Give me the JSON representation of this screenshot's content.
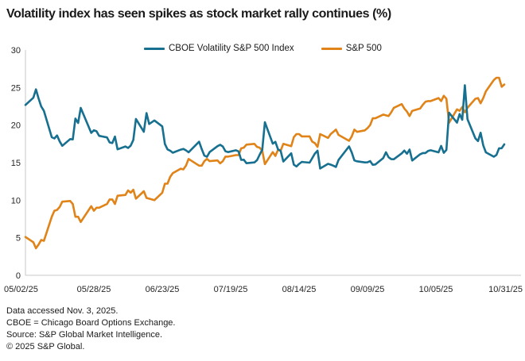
{
  "header": {
    "title": "Volatility index has seen spikes as stock market rally continues (%)"
  },
  "footer": {
    "lines": [
      "Data accessed Nov. 3, 2025.",
      "CBOE = Chicago Board Options Exchange.",
      "Source: S&P Global Market Intelligence.",
      "© 2025 S&P Global."
    ]
  },
  "chart_data": {
    "type": "line",
    "title": "Volatility index has seen spikes as stock market rally continues (%)",
    "unit": "%",
    "grid": false,
    "legend_position": "top",
    "x_axis": {
      "tick_labels": [
        "05/02/25",
        "05/28/25",
        "06/23/25",
        "07/19/25",
        "08/14/25",
        "09/09/25",
        "10/05/25",
        "10/31/25"
      ],
      "tick_day_offsets": [
        0,
        26,
        52,
        78,
        104,
        130,
        156,
        182
      ],
      "span_days": 182
    },
    "y_axis": {
      "ticks": [
        0,
        5,
        10,
        15,
        20,
        25,
        30
      ],
      "range": [
        0,
        30
      ]
    },
    "dates": [
      "05/02",
      "05/05",
      "05/06",
      "05/07",
      "05/08",
      "05/09",
      "05/12",
      "05/13",
      "05/14",
      "05/15",
      "05/16",
      "05/19",
      "05/20",
      "05/21",
      "05/22",
      "05/23",
      "05/27",
      "05/28",
      "05/29",
      "05/30",
      "06/02",
      "06/03",
      "06/04",
      "06/05",
      "06/06",
      "06/09",
      "06/10",
      "06/11",
      "06/12",
      "06/13",
      "06/16",
      "06/17",
      "06/18",
      "06/20",
      "06/23",
      "06/24",
      "06/25",
      "06/26",
      "06/27",
      "06/30",
      "07/01",
      "07/02",
      "07/03",
      "07/07",
      "07/08",
      "07/09",
      "07/10",
      "07/11",
      "07/14",
      "07/15",
      "07/16",
      "07/17",
      "07/18",
      "07/21",
      "07/22",
      "07/23",
      "07/24",
      "07/25",
      "07/28",
      "07/29",
      "07/30",
      "07/31",
      "08/01",
      "08/04",
      "08/05",
      "08/06",
      "08/07",
      "08/08",
      "08/11",
      "08/12",
      "08/13",
      "08/14",
      "08/15",
      "08/18",
      "08/19",
      "08/20",
      "08/21",
      "08/22",
      "08/25",
      "08/26",
      "08/27",
      "08/28",
      "08/29",
      "09/02",
      "09/03",
      "09/04",
      "09/05",
      "09/08",
      "09/09",
      "09/10",
      "09/11",
      "09/12",
      "09/15",
      "09/16",
      "09/17",
      "09/18",
      "09/19",
      "09/22",
      "09/23",
      "09/24",
      "09/25",
      "09/26",
      "09/29",
      "09/30",
      "10/01",
      "10/02",
      "10/03",
      "10/06",
      "10/07",
      "10/08",
      "10/09",
      "10/10",
      "10/13",
      "10/14",
      "10/15",
      "10/16",
      "10/17",
      "10/20",
      "10/21",
      "10/22",
      "10/23",
      "10/24",
      "10/27",
      "10/28",
      "10/29",
      "10/30",
      "10/31"
    ],
    "series": [
      {
        "name": "CBOE Volatility S&P 500 Index",
        "color": "#17708F",
        "values": [
          22.68,
          23.64,
          24.76,
          23.55,
          22.48,
          21.9,
          18.38,
          18.22,
          18.62,
          17.83,
          17.24,
          18.14,
          18.09,
          20.87,
          20.28,
          22.29,
          18.96,
          19.31,
          19.18,
          18.57,
          18.36,
          17.69,
          17.61,
          18.48,
          16.77,
          17.16,
          16.95,
          17.26,
          18.02,
          20.82,
          19.11,
          21.6,
          20.14,
          20.62,
          19.83,
          17.48,
          16.76,
          16.59,
          16.32,
          16.73,
          16.83,
          16.64,
          16.38,
          17.79,
          16.81,
          15.94,
          15.78,
          16.4,
          17.2,
          17.38,
          17.16,
          16.52,
          16.41,
          16.65,
          16.5,
          15.37,
          15.39,
          14.93,
          15.03,
          15.33,
          16.06,
          16.72,
          20.38,
          17.52,
          17.77,
          16.77,
          16.57,
          15.15,
          16.25,
          14.73,
          14.49,
          14.83,
          15.09,
          15.0,
          15.59,
          16.2,
          16.6,
          14.22,
          14.84,
          14.74,
          14.6,
          14.43,
          15.36,
          17.17,
          16.35,
          15.3,
          15.18,
          15.03,
          15.04,
          15.21,
          14.71,
          14.76,
          15.61,
          16.38,
          15.72,
          15.47,
          15.45,
          16.24,
          16.61,
          16.18,
          16.74,
          15.29,
          16.12,
          16.28,
          16.28,
          16.55,
          16.65,
          16.37,
          17.23,
          16.31,
          16.7,
          21.66,
          20.32,
          21.48,
          20.7,
          25.31,
          20.78,
          18.23,
          17.87,
          18.98,
          17.3,
          16.37,
          15.79,
          16.02,
          16.91,
          16.92,
          17.44
        ]
      },
      {
        "name": "S&P 500",
        "color": "#E08318",
        "values": [
          5.1,
          4.4,
          3.6,
          4.1,
          4.7,
          4.6,
          7.8,
          8.6,
          8.7,
          9.1,
          9.8,
          9.9,
          9.5,
          7.8,
          7.8,
          7.1,
          9.2,
          8.6,
          9.0,
          9.0,
          9.5,
          10.1,
          10.1,
          9.5,
          10.6,
          10.7,
          11.3,
          11.0,
          11.4,
          10.2,
          11.2,
          10.3,
          10.2,
          10.0,
          11.0,
          12.2,
          12.2,
          13.1,
          13.6,
          14.2,
          14.1,
          14.6,
          15.5,
          14.6,
          14.6,
          15.2,
          15.5,
          15.2,
          15.3,
          14.9,
          15.2,
          15.8,
          15.8,
          16.0,
          16.0,
          16.9,
          17.0,
          17.4,
          17.5,
          17.1,
          17.0,
          16.6,
          14.8,
          16.4,
          15.9,
          16.7,
          16.6,
          17.5,
          17.2,
          18.4,
          18.8,
          18.8,
          18.5,
          18.5,
          17.8,
          17.6,
          17.1,
          18.8,
          18.3,
          18.8,
          19.1,
          19.4,
          18.7,
          17.9,
          18.5,
          19.4,
          19.1,
          19.3,
          19.6,
          20.0,
          20.9,
          20.9,
          21.4,
          21.3,
          21.2,
          21.7,
          22.3,
          22.8,
          22.2,
          21.8,
          21.2,
          21.9,
          22.2,
          22.7,
          23.1,
          23.2,
          23.2,
          23.6,
          23.2,
          23.9,
          23.5,
          20.3,
          22.1,
          21.9,
          22.4,
          21.7,
          22.3,
          23.5,
          23.6,
          22.9,
          23.6,
          24.5,
          26.0,
          26.3,
          26.3,
          25.1,
          25.4
        ]
      }
    ]
  }
}
